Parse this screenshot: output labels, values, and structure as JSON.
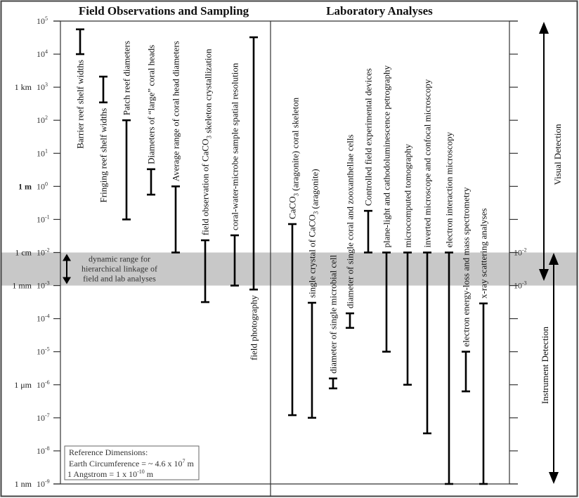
{
  "headers": {
    "field": "Field Observations and Sampling",
    "lab": "Laboratory Analyses"
  },
  "axis": {
    "scale": "log10 meters",
    "min_exp": -9,
    "max_exp": 5,
    "ticks": [
      5,
      4,
      3,
      2,
      1,
      0,
      -1,
      -2,
      -3,
      -4,
      -5,
      -6,
      -7,
      -8,
      -9
    ],
    "unit_labels": [
      {
        "exp": 3,
        "text": "1 km",
        "bold": false
      },
      {
        "exp": 0,
        "text": "1 m",
        "bold": true
      },
      {
        "exp": -2,
        "text": "1 cm",
        "bold": false
      },
      {
        "exp": -3,
        "text": "1 mm",
        "bold": false
      },
      {
        "exp": -6,
        "text": "1 μm",
        "bold": false
      },
      {
        "exp": -9,
        "text": "1 nm",
        "bold": false
      }
    ],
    "right_ticks": [
      -2,
      -3
    ]
  },
  "band": {
    "from_exp": -3,
    "to_exp": -2,
    "text": [
      "dynamic range for",
      "hierarchical linkage of",
      "field and lab analyses"
    ],
    "color": "#c8c8c8"
  },
  "field_items": [
    {
      "label": "Barrier reef shelf widths",
      "top": 4.75,
      "bottom": 4.0,
      "label_position": "below"
    },
    {
      "label": "Fringing reef shelf widths",
      "top": 3.32,
      "bottom": 2.54,
      "label_position": "below"
    },
    {
      "label": "Patch reef diameters",
      "top": 2.0,
      "bottom": -1.0,
      "label_position": "above"
    },
    {
      "label": "Diameters of “large” coral heads",
      "top": 0.52,
      "bottom": -0.25,
      "label_position": "above"
    },
    {
      "label": "Average range of coral head diameters",
      "top": 0.0,
      "bottom": -2.0,
      "label_position": "above"
    },
    {
      "label": "field observation of CaCO3 skeleton crystallization",
      "top": -1.63,
      "bottom": -3.5,
      "label_position": "above"
    },
    {
      "label": "coral-water-microbe sample spatial resolution",
      "top": -1.48,
      "bottom": -3.0,
      "label_position": "above"
    },
    {
      "label": "field photography",
      "top": 4.51,
      "bottom": -3.12,
      "label_position": "below"
    }
  ],
  "lab_items": [
    {
      "label": "CaCO3 (aragonite) coral skeleton",
      "top": -1.14,
      "bottom": -6.92,
      "label_position": "above"
    },
    {
      "label": "single crystal of CaCO3 (aragonite)",
      "top": -3.52,
      "bottom": -7.0,
      "label_position": "above"
    },
    {
      "label": "diameter of single microbial cell",
      "top": -5.81,
      "bottom": -6.11,
      "label_position": "above"
    },
    {
      "label": "diameter of single coral and zooxanthellae cells",
      "top": -3.84,
      "bottom": -4.28,
      "label_position": "above"
    },
    {
      "label": "Controlled field experimental devices",
      "top": -0.74,
      "bottom": -2.0,
      "label_position": "above"
    },
    {
      "label": "plane-light and cathodoluminescence petrography",
      "top": -2.0,
      "bottom": -5.0,
      "label_position": "above"
    },
    {
      "label": "microcomputed tomography",
      "top": -2.0,
      "bottom": -6.0,
      "label_position": "above"
    },
    {
      "label": "inverted microscope and confocal microscopy",
      "top": -2.0,
      "bottom": -7.47,
      "label_position": "above"
    },
    {
      "label": "electron interaction microscopy",
      "top": -2.0,
      "bottom": -9.0,
      "label_position": "above"
    },
    {
      "label": "electron energy-loss and mass spectrometry",
      "top": -5.0,
      "bottom": -6.2,
      "label_position": "above"
    },
    {
      "label": "x-ray scattering analyses",
      "top": -3.54,
      "bottom": -9.0,
      "label_position": "above"
    }
  ],
  "detection": {
    "visual": "Visual Detection",
    "instrument": "Instrument Detection"
  },
  "reference": {
    "title": "Reference Dimensions:",
    "earth_prefix": "Earth Circumference = ~ 4.6 x 10",
    "earth_exp": "7",
    "earth_suffix": " m",
    "angstrom_prefix": "1 Angstrom = 1 x 10",
    "angstrom_exp": "-10",
    "angstrom_suffix": " m"
  }
}
